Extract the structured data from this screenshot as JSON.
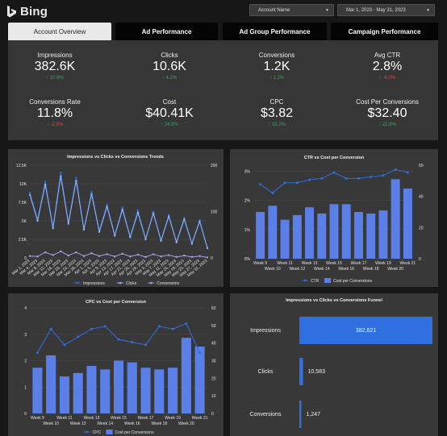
{
  "header": {
    "logo_text": "Bing",
    "account_dropdown": "Account Name",
    "date_dropdown": "Mar 1, 2023 - May 31, 2023"
  },
  "tabs": [
    {
      "label": "Account Overview",
      "active": true
    },
    {
      "label": "Ad Performance",
      "active": false
    },
    {
      "label": "Ad Group Performance",
      "active": false
    },
    {
      "label": "Campaign Performance",
      "active": false
    }
  ],
  "kpis": [
    {
      "label": "Impressions",
      "value": "382.6K",
      "delta": "↑ 10.9%",
      "trend": "up"
    },
    {
      "label": "Clicks",
      "value": "10.6K",
      "delta": "↑ 4.2%",
      "trend": "up"
    },
    {
      "label": "Conversions",
      "value": "1.2K",
      "delta": "↑ 1.2%",
      "trend": "up"
    },
    {
      "label": "Avg CTR",
      "value": "2.8%",
      "delta": "↓ -6.0%",
      "trend": "down"
    },
    {
      "label": "Conversions Rate",
      "value": "11.8%",
      "delta": "↓ -2.9%",
      "trend": "down"
    },
    {
      "label": "Cost",
      "value": "$40.41K",
      "delta": "↑ 24.9%",
      "trend": "up"
    },
    {
      "label": "CPC",
      "value": "$3.82",
      "delta": "↑ 19.2%",
      "trend": "up"
    },
    {
      "label": "Cost Per Conversions",
      "value": "$32.40",
      "delta": "↑ 22.8%",
      "trend": "up"
    }
  ],
  "colors": {
    "bar": "#5a7fe6",
    "line_primary": "#2f6fe0",
    "line_clicks": "#8fb3f5",
    "line_conversions": "#a9a0e6",
    "up": "#37a85a",
    "down": "#e04545"
  },
  "chart_data": [
    {
      "type": "line",
      "title": "Impressions vs Clicks vs Conversions Trends",
      "x": [
        "Mar 1, 2023",
        "Mar 4, 2023",
        "Mar 8, 2023",
        "Mar 12, 2023",
        "Mar 16, 2023",
        "Mar 20, 2023",
        "Mar 24, 2023",
        "Mar 28, 2023",
        "Apr 1, 2023",
        "Apr 5, 2023",
        "Apr 9, 2023",
        "Apr 13, 2023",
        "Apr 17, 2023",
        "Apr 21, 2023",
        "Apr 25, 2023",
        "Apr 29, 2023",
        "May 3, 2023",
        "May 7, 2023",
        "May 11, 2023",
        "May 15, 2023",
        "May 19, 2023",
        "May 23, 2023",
        "May 27, 2023",
        "May 31, 2023"
      ],
      "left_axis": {
        "ticks": [
          "0",
          "2.5K",
          "5K",
          "7.5K",
          "10K",
          "12.5K"
        ],
        "range": [
          0,
          12500
        ]
      },
      "right_axis": {
        "ticks": [
          "0",
          "100",
          "200"
        ],
        "range": [
          0,
          200
        ]
      },
      "series": [
        {
          "name": "Impressions",
          "axis": "left",
          "values": [
            8800,
            5200,
            10300,
            4200,
            11500,
            4800,
            10800,
            3900,
            8900,
            3700,
            7200,
            3100,
            6800,
            2900,
            6400,
            2600,
            6200,
            2400,
            5800,
            2200,
            5400,
            2000,
            5100,
            1400
          ]
        },
        {
          "name": "Clicks",
          "axis": "left",
          "values": [
            8500,
            5000,
            9900,
            4000,
            11000,
            4600,
            10400,
            3800,
            8600,
            3500,
            6900,
            3000,
            6500,
            2800,
            6100,
            2500,
            6000,
            2300,
            5600,
            2100,
            5200,
            1900,
            4900,
            1300
          ]
        },
        {
          "name": "Conversions",
          "axis": "right",
          "values": [
            4,
            3,
            12,
            6,
            14,
            5,
            12,
            4,
            10,
            4,
            8,
            3,
            9,
            3,
            7,
            2,
            8,
            3,
            6,
            2,
            5,
            2,
            4,
            1
          ]
        }
      ]
    },
    {
      "type": "bar",
      "title": "CTR vs Cost per Conversion",
      "categories": [
        "Week 9",
        "Week 10",
        "Week 11",
        "Week 12",
        "Week 13",
        "Week 14",
        "Week 15",
        "Week 16",
        "Week 17",
        "Week 18",
        "Week 19",
        "Week 20",
        "Week 21"
      ],
      "left_axis": {
        "ticks": [
          "0%",
          "1%",
          "2%",
          "3%"
        ],
        "range": [
          0,
          3.2
        ]
      },
      "right_axis": {
        "ticks": [
          "0",
          "20",
          "40",
          "60"
        ],
        "range": [
          0,
          60
        ]
      },
      "series": [
        {
          "name": "Cost per Conversions",
          "type": "bar",
          "axis": "right",
          "values": [
            30,
            34,
            25,
            28,
            33,
            29,
            35,
            35,
            30,
            29,
            31,
            51,
            45
          ]
        },
        {
          "name": "CTR",
          "type": "line",
          "axis": "left",
          "values": [
            2.55,
            2.25,
            2.6,
            2.6,
            2.7,
            2.75,
            2.95,
            2.75,
            2.75,
            2.8,
            2.85,
            3.05,
            2.95
          ]
        }
      ],
      "legend": "bottom"
    },
    {
      "type": "bar",
      "title": "CPC vs Cost per Conversion",
      "categories": [
        "Week 9",
        "Week 10",
        "Week 11",
        "Week 12",
        "Week 13",
        "Week 14",
        "Week 15",
        "Week 16",
        "Week 17",
        "Week 18",
        "Week 19",
        "Week 20",
        "Week 21"
      ],
      "left_axis": {
        "ticks": [
          "0",
          "1",
          "2",
          "3",
          "4"
        ],
        "range": [
          0,
          4
        ]
      },
      "right_axis": {
        "ticks": [
          "0",
          "10",
          "20",
          "30",
          "40",
          "50",
          "60"
        ],
        "range": [
          0,
          60
        ]
      },
      "series": [
        {
          "name": "Cost per Conversions",
          "type": "bar",
          "axis": "right",
          "values": [
            26,
            33,
            21,
            23,
            27,
            25,
            30,
            29,
            26,
            25,
            26,
            43,
            38
          ]
        },
        {
          "name": "CPC",
          "type": "line",
          "axis": "left",
          "values": [
            2.3,
            3.2,
            2.6,
            2.9,
            3.2,
            3.3,
            2.8,
            2.7,
            2.6,
            3.3,
            3.2,
            3.4,
            2.3
          ]
        }
      ],
      "legend": "bottom"
    },
    {
      "type": "bar",
      "title": "Impressions vs Clicks vs Conversions Funnel",
      "categories": [
        "Impressions",
        "Clicks",
        "Conversions"
      ],
      "values": [
        382621,
        10583,
        1247
      ],
      "labels": [
        "382,621",
        "10,583",
        "1,247"
      ]
    }
  ]
}
